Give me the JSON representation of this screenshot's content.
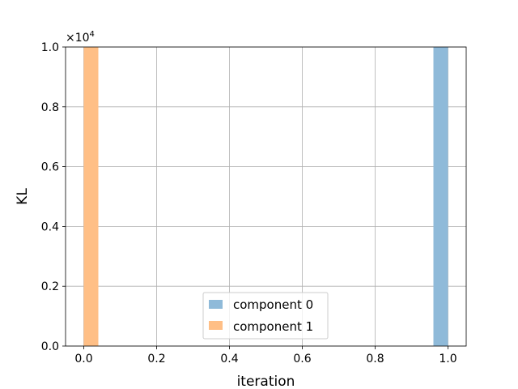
{
  "chart_data": {
    "type": "bar",
    "xlabel": "iteration",
    "ylabel": "KL",
    "y_scale_label": "×10",
    "y_scale_exponent": "4",
    "xlim": [
      -0.05,
      1.05
    ],
    "ylim": [
      0,
      10000
    ],
    "grid": true,
    "legend_position": "bottom-center",
    "x_ticks": [
      "0.0",
      "0.2",
      "0.4",
      "0.6",
      "0.8",
      "1.0"
    ],
    "y_ticks": [
      "0.0",
      "0.2",
      "0.4",
      "0.6",
      "0.8",
      "1.0"
    ],
    "series": [
      {
        "name": "component 0",
        "color": "#8fbad9",
        "bars": [
          {
            "x_start": 0.96,
            "x_end": 1.0,
            "value": 10000
          }
        ]
      },
      {
        "name": "component 1",
        "color": "#ffbf86",
        "bars": [
          {
            "x_start": 0.0,
            "x_end": 0.04,
            "value": 10000
          }
        ]
      }
    ]
  }
}
